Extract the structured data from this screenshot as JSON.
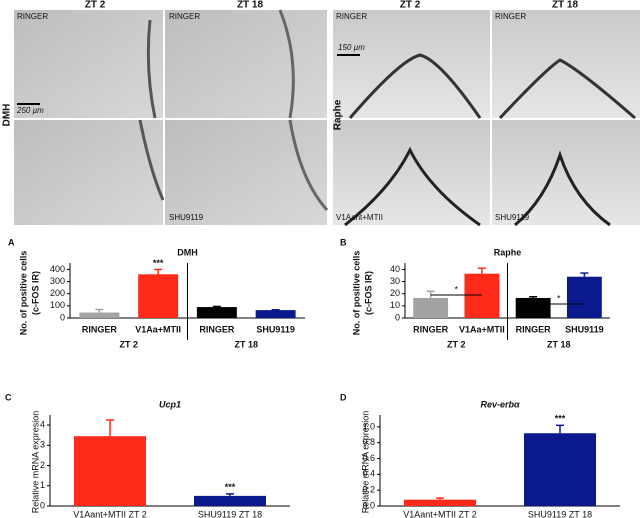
{
  "micrographs": {
    "dmh": {
      "label": "DMH",
      "columns": [
        "ZT 2",
        "ZT 18"
      ],
      "scale_bar": "250 µm",
      "top_left": "RINGER",
      "top_right": "RINGER",
      "bottom_right": "SHU9119"
    },
    "raphe": {
      "label": "Raphe",
      "columns": [
        "ZT 2",
        "ZT 18"
      ],
      "scale_bar": "150 µm",
      "top_left": "RINGER",
      "top_right": "RINGER",
      "bottom_left": "V1Aant+MTII",
      "bottom_right": "SHU9119"
    }
  },
  "chart_data": [
    {
      "panel": "A",
      "type": "bar",
      "title": "DMH",
      "y_label": [
        "No. of positive cells",
        "(c-FOS IR)"
      ],
      "categories": [
        "RINGER",
        "V1Aa+MTII",
        "RINGER",
        "SHU9119"
      ],
      "values": [
        45,
        360,
        90,
        65
      ],
      "errors": [
        25,
        40,
        5,
        3
      ],
      "colors": [
        "#a3a3a3",
        "#ff2a1a",
        "#000000",
        "#0a1a8c"
      ],
      "groups": [
        "ZT 2",
        "ZT 18"
      ],
      "significance": [
        {
          "label": "***",
          "bracket": [
            1
          ]
        }
      ],
      "ylim": [
        0,
        420
      ],
      "yticks": [
        0,
        100,
        200,
        300,
        400
      ]
    },
    {
      "panel": "B",
      "type": "bar",
      "title": "Raphe",
      "y_label": [
        "No. of positive cells",
        "(c-FOS IR)"
      ],
      "categories": [
        "RINGER",
        "V1Aa+MTII",
        "RINGER",
        "SHU9119"
      ],
      "values": [
        16.5,
        36.5,
        16.5,
        34
      ],
      "errors": [
        5.5,
        4.5,
        1,
        3
      ],
      "colors": [
        "#a3a3a3",
        "#ff2a1a",
        "#000000",
        "#0a1a8c"
      ],
      "groups": [
        "ZT 2",
        "ZT 18"
      ],
      "significance": [
        {
          "label": "*",
          "bracket": [
            0,
            1
          ]
        },
        {
          "label": "*",
          "bracket": [
            2,
            3
          ]
        }
      ],
      "ylim": [
        0,
        42
      ],
      "yticks": [
        0,
        10,
        20,
        30,
        40
      ]
    },
    {
      "panel": "C",
      "type": "bar",
      "title": "Ucp1",
      "y_label": [
        "Relative mRNA expresion"
      ],
      "categories": [
        "V1Aant+MTII ZT 2",
        "SHU9119 ZT 18"
      ],
      "values": [
        3.45,
        0.5
      ],
      "errors": [
        0.8,
        0.1
      ],
      "colors": [
        "#ff2a1a",
        "#0a1a8c"
      ],
      "significance": [
        {
          "label": "***",
          "bracket": [
            1
          ]
        }
      ],
      "ylim": [
        0,
        4.3
      ],
      "yticks": [
        0,
        1,
        2,
        3,
        4
      ]
    },
    {
      "panel": "D",
      "type": "bar",
      "title": "Rev-erbα",
      "y_label": [
        "Relative mRNA expresion"
      ],
      "categories": [
        "V1Aant+MTII ZT 2",
        "SHU9119 ZT 18"
      ],
      "values": [
        0.08,
        0.92
      ],
      "errors": [
        0.02,
        0.1
      ],
      "colors": [
        "#ff2a1a",
        "#0a1a8c"
      ],
      "significance": [
        {
          "label": "***",
          "bracket": [
            1
          ]
        }
      ],
      "ylim": [
        0,
        1.1
      ],
      "yticks": [
        {
          "value": 0,
          "label": "0.0"
        },
        0.2,
        0.4,
        0.6,
        0.8,
        {
          "value": 1,
          "label": "1.0"
        }
      ]
    }
  ]
}
